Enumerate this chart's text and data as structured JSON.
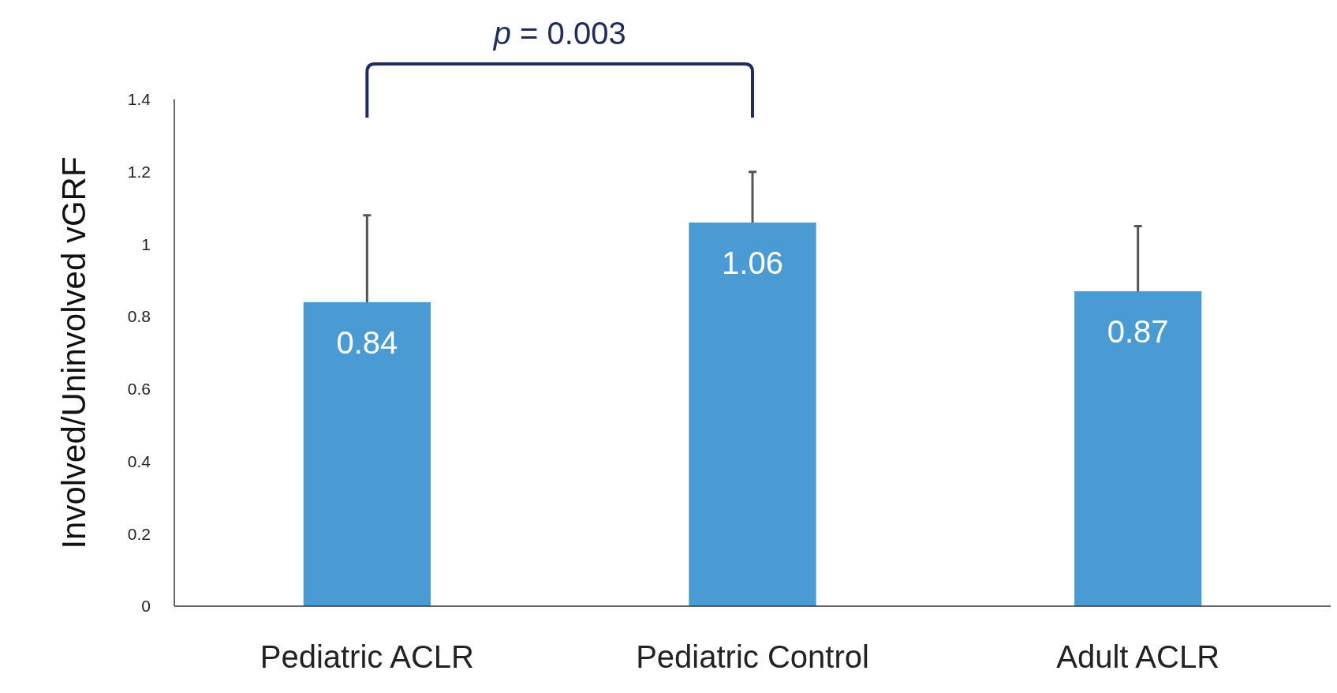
{
  "chart_data": {
    "type": "bar",
    "ylabel": "Involved/Uninvolved vGRF",
    "categories": [
      "Pediatric ACLR",
      "Pediatric Control",
      "Adult ACLR"
    ],
    "values": [
      0.84,
      1.06,
      0.87
    ],
    "errors": [
      0.24,
      0.14,
      0.18
    ],
    "color": "#4a9bd4",
    "ylim": [
      0,
      1.4
    ],
    "yticks": [
      0,
      0.2,
      0.4,
      0.6,
      0.8,
      1,
      1.2,
      1.4
    ],
    "grid": false,
    "data_labels": true,
    "annotations": [
      "p = 0.003"
    ]
  }
}
